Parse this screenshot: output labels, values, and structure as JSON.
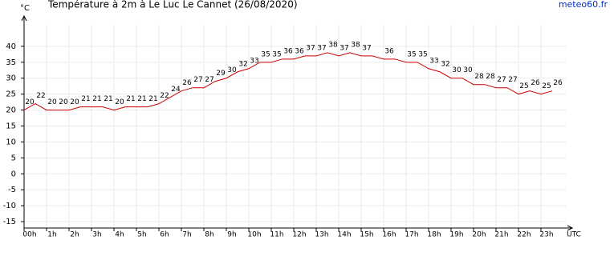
{
  "chart_data": {
    "type": "line",
    "title": "Température à 2m à Le Luc Le Cannet (26/08/2020)",
    "y_label": "°C",
    "x_label": "UTC",
    "source": "meteo60.fr",
    "x": [
      0,
      0.5,
      1,
      1.5,
      2,
      2.5,
      3,
      3.5,
      4,
      4.5,
      5,
      5.5,
      6,
      6.5,
      7,
      7.5,
      8,
      8.5,
      9,
      9.5,
      10,
      10.5,
      11,
      11.5,
      12,
      12.5,
      13,
      13.5,
      14,
      14.5,
      15,
      15.5,
      16,
      16.5,
      17,
      17.5,
      18,
      18.5,
      19,
      19.5,
      20,
      20.5,
      21,
      21.5,
      22,
      22.5,
      23,
      23.5
    ],
    "values": [
      20,
      22,
      20,
      20,
      20,
      21,
      21,
      21,
      20,
      21,
      21,
      21,
      22,
      24,
      26,
      27,
      27,
      29,
      30,
      32,
      33,
      35,
      35,
      36,
      36,
      37,
      37,
      38,
      37,
      38,
      37,
      37,
      36,
      36,
      35,
      35,
      33,
      32,
      30,
      30,
      28,
      28,
      27,
      27,
      25,
      26,
      25,
      26
    ],
    "value_labels": [
      "20",
      "22",
      "20",
      "20",
      "20",
      "21",
      "21",
      "21",
      "20",
      "21",
      "21",
      "21",
      "22",
      "24",
      "26",
      "27",
      "27",
      "29",
      "30",
      "32",
      "33",
      "35",
      "35",
      "36",
      "36",
      "37",
      "37",
      "38",
      "37",
      "38",
      "37",
      null,
      "36",
      null,
      "35",
      "35",
      "33",
      "32",
      "30",
      "30",
      "28",
      "28",
      "27",
      "27",
      "25",
      "26",
      "25",
      "26"
    ],
    "color": "#cc0000",
    "xlim": [
      0,
      24.2
    ],
    "xticks": [
      {
        "value": 0,
        "label": "00h"
      },
      {
        "value": 1,
        "label": "1h"
      },
      {
        "value": 2,
        "label": "2h"
      },
      {
        "value": 3,
        "label": "3h"
      },
      {
        "value": 4,
        "label": "4h"
      },
      {
        "value": 5,
        "label": "5h"
      },
      {
        "value": 6,
        "label": "6h"
      },
      {
        "value": 7,
        "label": "7h"
      },
      {
        "value": 8,
        "label": "8h"
      },
      {
        "value": 9,
        "label": "9h"
      },
      {
        "value": 10,
        "label": "10h"
      },
      {
        "value": 11,
        "label": "11h"
      },
      {
        "value": 12,
        "label": "12h"
      },
      {
        "value": 13,
        "label": "13h"
      },
      {
        "value": 14,
        "label": "14h"
      },
      {
        "value": 15,
        "label": "15h"
      },
      {
        "value": 16,
        "label": "16h"
      },
      {
        "value": 17,
        "label": "17h"
      },
      {
        "value": 18,
        "label": "18h"
      },
      {
        "value": 19,
        "label": "19h"
      },
      {
        "value": 20,
        "label": "20h"
      },
      {
        "value": 21,
        "label": "21h"
      },
      {
        "value": 22,
        "label": "22h"
      },
      {
        "value": 23,
        "label": "23h"
      }
    ],
    "ylim": [
      -17,
      47
    ],
    "yticks": [
      -15,
      -10,
      -5,
      0,
      5,
      10,
      15,
      20,
      25,
      30,
      35,
      40
    ],
    "grid": true
  }
}
